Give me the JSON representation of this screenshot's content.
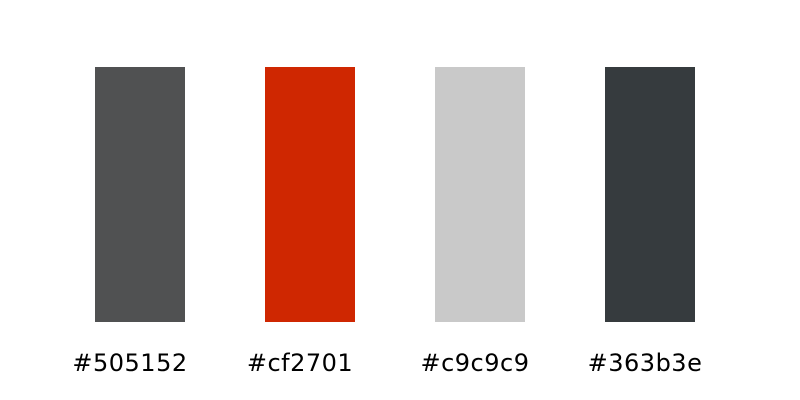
{
  "palette": {
    "swatches": [
      {
        "hex": "#505152",
        "color": "#505152"
      },
      {
        "hex": "#cf2701",
        "color": "#cf2701"
      },
      {
        "hex": "#c9c9c9",
        "color": "#c9c9c9"
      },
      {
        "hex": "#363b3e",
        "color": "#363b3e"
      }
    ]
  }
}
